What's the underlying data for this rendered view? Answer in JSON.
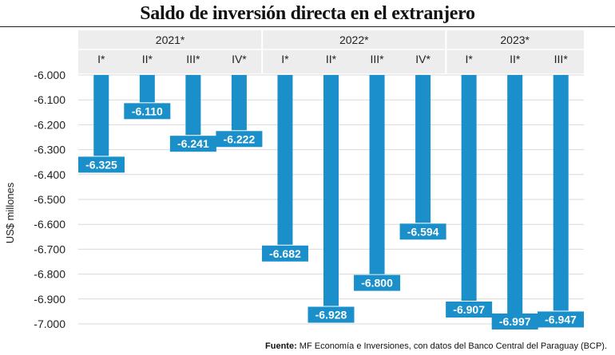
{
  "header": {
    "title": "Saldo de inversión directa en el extranjero"
  },
  "footer": {
    "source_label": "Fuente:",
    "source_text": " MF Economía e Inversiones, con datos del Banco Central del Paraguay (BCP)."
  },
  "colors": {
    "bar": "#1a8fc9",
    "label_bg": "#1a8fc9",
    "header_band": "#ededed",
    "grid": "#d9d9d9"
  },
  "chart_data": {
    "type": "bar",
    "title": "Saldo de inversión directa en el extranjero",
    "ylabel": "US$ millones",
    "xlabel": "",
    "ylim": [
      -7000,
      -6000
    ],
    "yticks": [
      -6000,
      -6100,
      -6200,
      -6300,
      -6400,
      -6500,
      -6600,
      -6700,
      -6800,
      -6900,
      -7000
    ],
    "ytick_labels": [
      "-6.000",
      "-6.100",
      "-6.200",
      "-6.300",
      "-6.400",
      "-6.500",
      "-6.600",
      "-6.700",
      "-6.800",
      "-6.900",
      "-7.000"
    ],
    "groups": [
      {
        "year": "2021*",
        "quarters": [
          "I*",
          "II*",
          "III*",
          "IV*"
        ]
      },
      {
        "year": "2022*",
        "quarters": [
          "I*",
          "II*",
          "III*",
          "IV*"
        ]
      },
      {
        "year": "2023*",
        "quarters": [
          "I*",
          "II*",
          "III*"
        ]
      }
    ],
    "values": [
      -6325,
      -6110,
      -6241,
      -6222,
      -6682,
      -6928,
      -6800,
      -6594,
      -6907,
      -6997,
      -6947
    ],
    "value_labels": [
      "-6.325",
      "-6.110",
      "-6.241",
      "-6.222",
      "-6.682",
      "-6.928",
      "-6.800",
      "-6.594",
      "-6.907",
      "-6.997",
      "-6.947"
    ]
  }
}
